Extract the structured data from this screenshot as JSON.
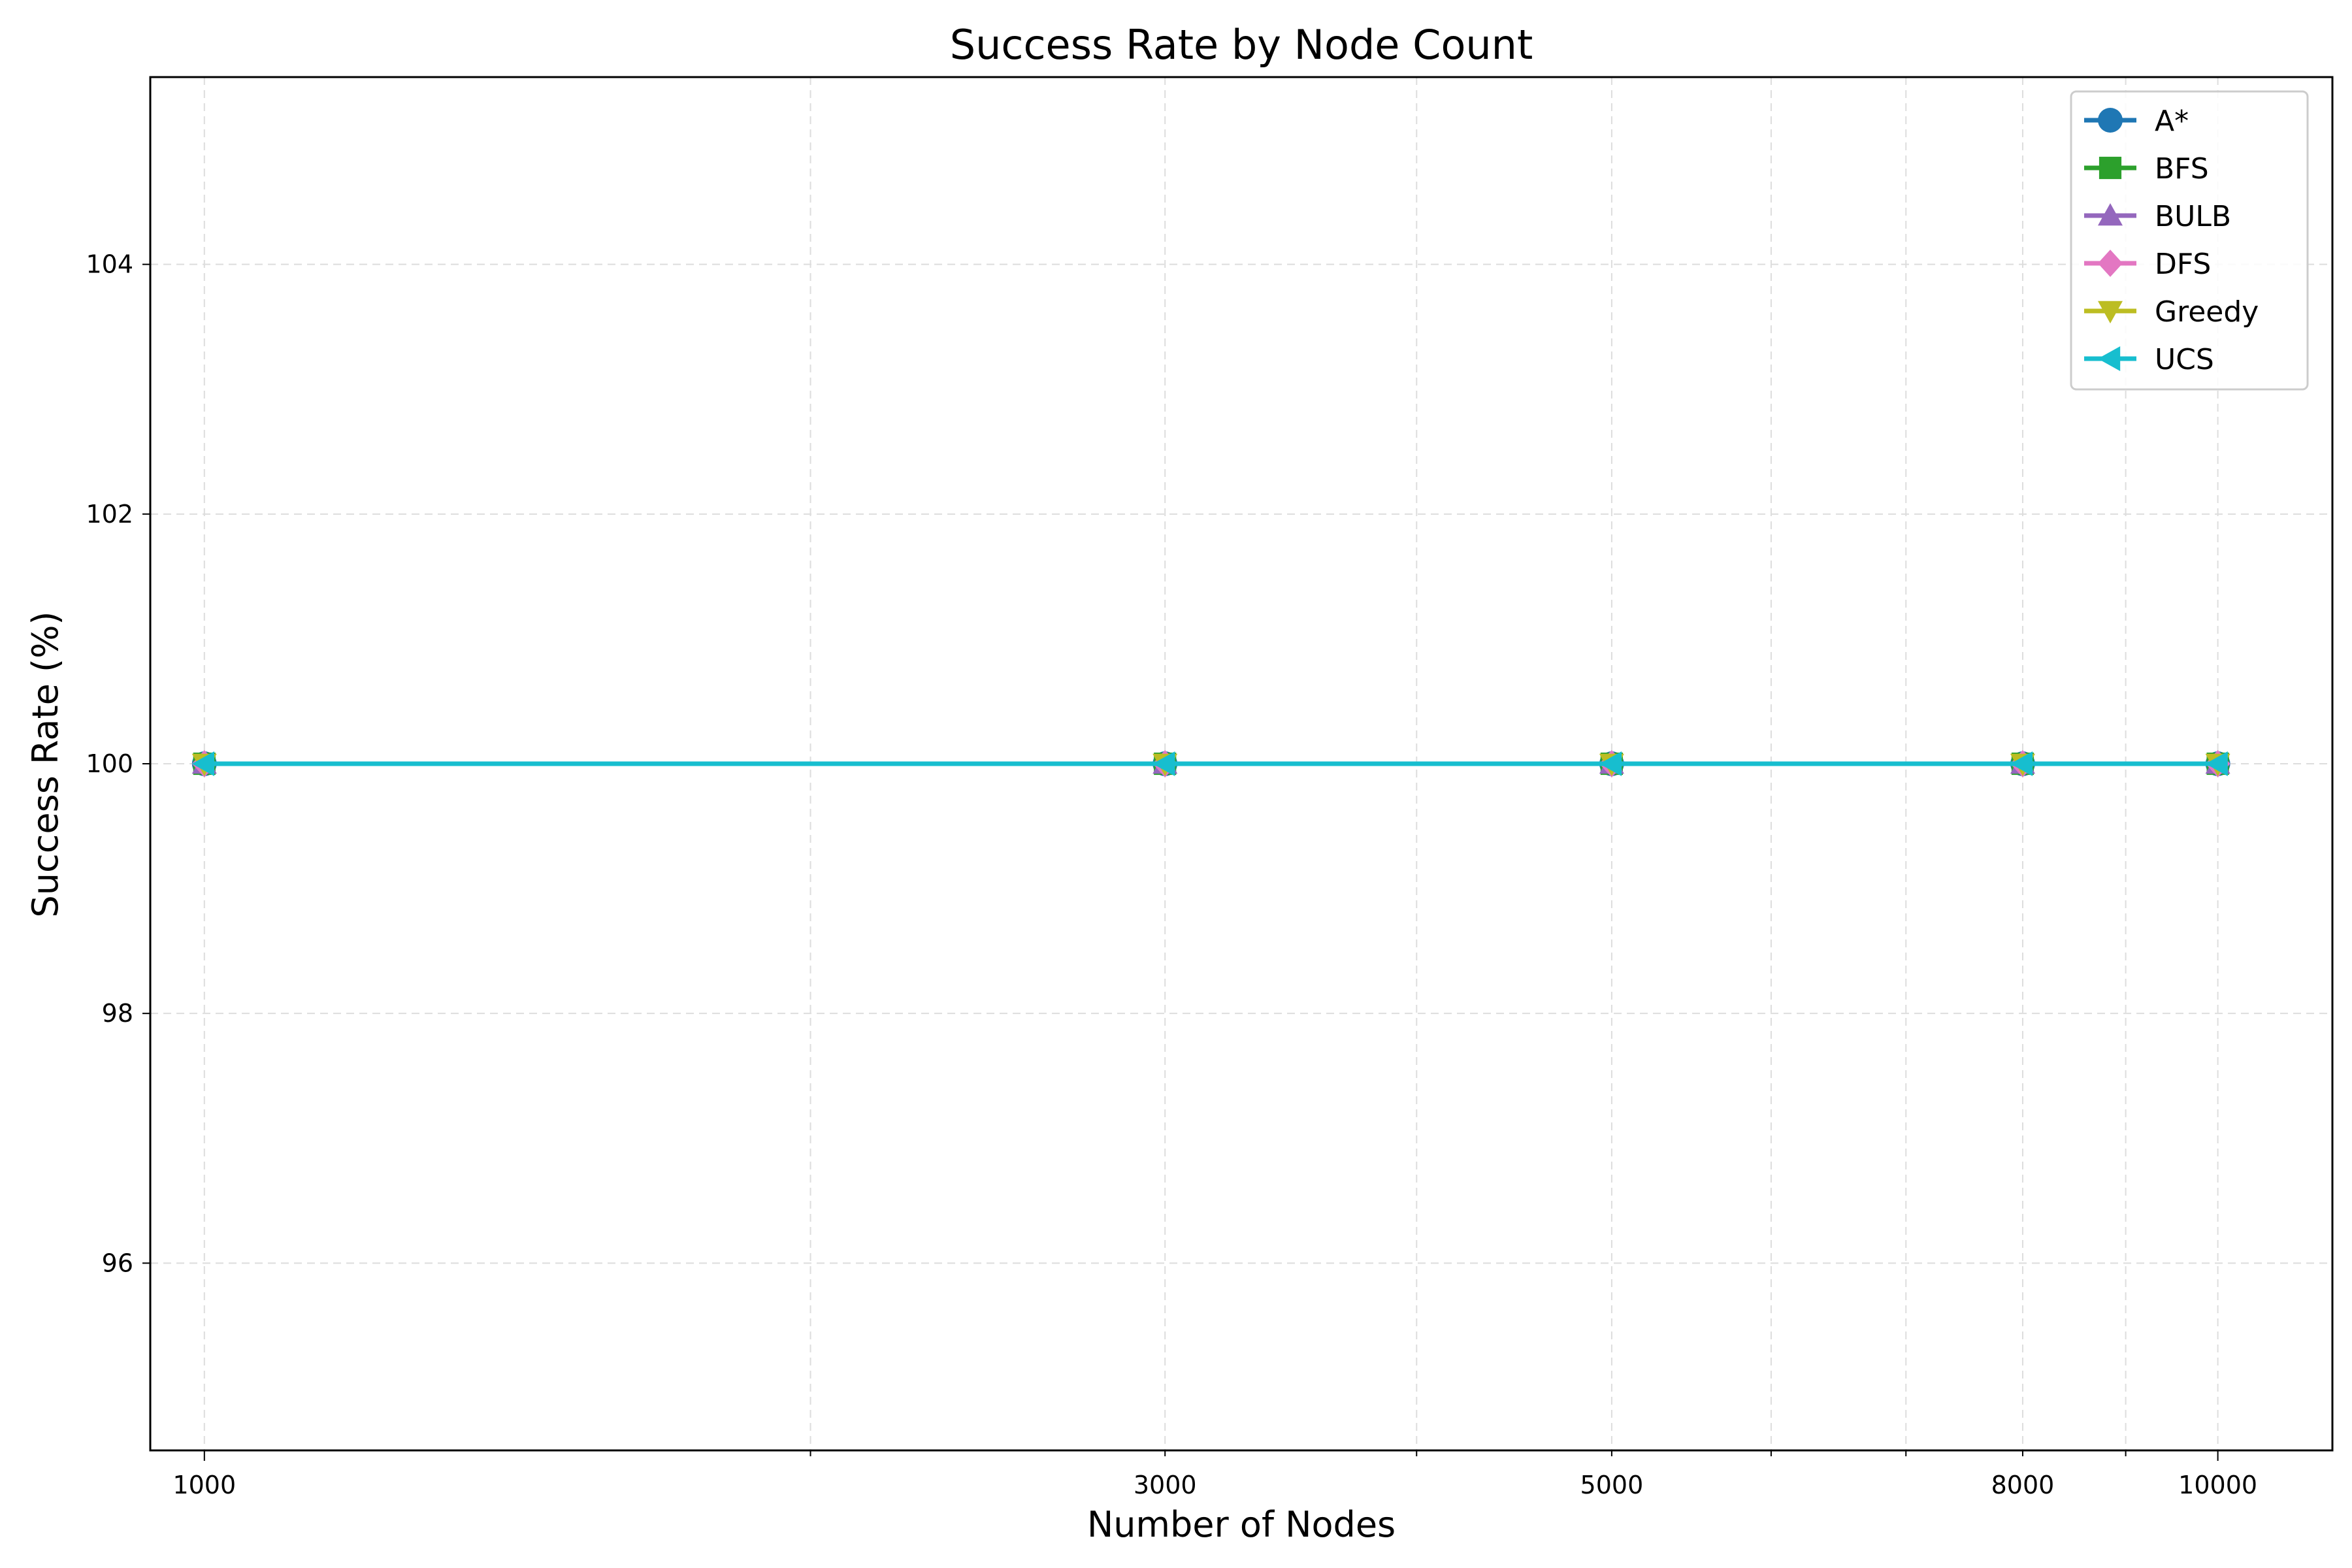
{
  "chart_data": {
    "type": "line",
    "title": "Success Rate by Node Count",
    "xlabel": "Number of Nodes",
    "ylabel": "Success Rate (%)",
    "x_scale": "log",
    "xlim": [
      940,
      11400
    ],
    "ylim": [
      94.5,
      105.5
    ],
    "x_ticks": [
      1000,
      3000,
      5000,
      8000,
      10000
    ],
    "x_tick_labels": [
      "1000",
      "3000",
      "5000",
      "8000",
      "10000"
    ],
    "y_ticks": [
      96,
      98,
      100,
      102,
      104
    ],
    "y_tick_labels": [
      "96",
      "98",
      "100",
      "102",
      "104"
    ],
    "grid": true,
    "legend_position": "top-right",
    "x": [
      1000,
      3000,
      5000,
      8000,
      10000
    ],
    "series": [
      {
        "name": "A*",
        "values": [
          100,
          100,
          100,
          100,
          100
        ],
        "color": "#1f77b4",
        "marker": "circle"
      },
      {
        "name": "BFS",
        "values": [
          100,
          100,
          100,
          100,
          100
        ],
        "color": "#2ca02c",
        "marker": "square"
      },
      {
        "name": "BULB",
        "values": [
          100,
          100,
          100,
          100,
          100
        ],
        "color": "#9467bd",
        "marker": "triangle-up"
      },
      {
        "name": "DFS",
        "values": [
          100,
          100,
          100,
          100,
          100
        ],
        "color": "#e377c2",
        "marker": "diamond"
      },
      {
        "name": "Greedy",
        "values": [
          100,
          100,
          100,
          100,
          100
        ],
        "color": "#bcbd22",
        "marker": "triangle-down"
      },
      {
        "name": "UCS",
        "values": [
          100,
          100,
          100,
          100,
          100
        ],
        "color": "#17becf",
        "marker": "triangle-left"
      }
    ]
  }
}
